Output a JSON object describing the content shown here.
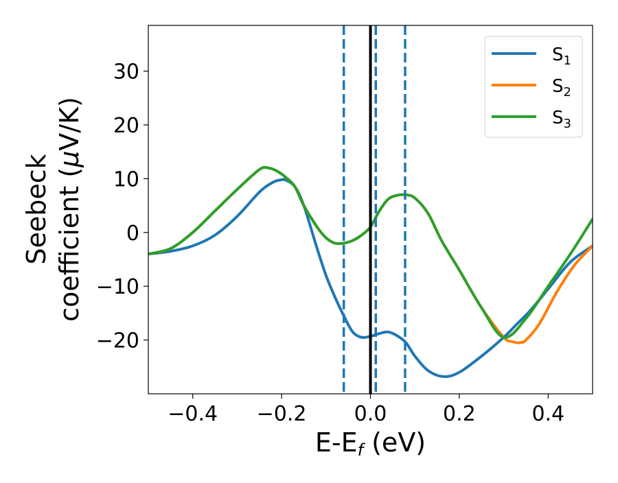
{
  "chart_data": {
    "type": "line",
    "title": "",
    "xlabel": "E-E",
    "xlabel_sub": "f",
    "xlabel_unit": " (eV)",
    "ylabel_line1": "Seebeck",
    "ylabel_line2": "coefficient  (",
    "ylabel_mu": "μ",
    "ylabel_line2_end": "V/K)",
    "xlim": [
      -0.5,
      0.5
    ],
    "ylim": [
      -30,
      38.5
    ],
    "xticks": [
      -0.4,
      -0.2,
      0.0,
      0.2,
      0.4
    ],
    "xtick_labels": [
      "−0.4",
      "−0.2",
      "0.0",
      "0.2",
      "0.4"
    ],
    "yticks": [
      -20,
      -10,
      0,
      10,
      20,
      30
    ],
    "ytick_labels": [
      "−20",
      "−10",
      "0",
      "10",
      "20",
      "30"
    ],
    "grid": false,
    "legend_position": "top-right",
    "series": [
      {
        "name": "S",
        "name_sub": "1",
        "color": "#1f77b4",
        "x": [
          -0.5,
          -0.45,
          -0.4,
          -0.35,
          -0.3,
          -0.25,
          -0.22,
          -0.2,
          -0.19,
          -0.17,
          -0.15,
          -0.12,
          -0.1,
          -0.08,
          -0.06,
          -0.04,
          -0.02,
          0.0,
          0.02,
          0.04,
          0.06,
          0.08,
          0.1,
          0.13,
          0.165,
          0.2,
          0.25,
          0.3,
          0.33,
          0.36,
          0.4,
          0.45,
          0.5
        ],
        "y": [
          -4,
          -3.5,
          -2.5,
          -0.5,
          3,
          7.5,
          9.3,
          9.8,
          9.7,
          8.5,
          5,
          -3,
          -8,
          -12,
          -15.5,
          -18.5,
          -19.5,
          -19.3,
          -18.8,
          -18.5,
          -19.2,
          -20.5,
          -23,
          -25.7,
          -26.8,
          -26,
          -23,
          -19.5,
          -17,
          -14.5,
          -10.5,
          -5.5,
          -2.5
        ]
      },
      {
        "name": "S",
        "name_sub": "2",
        "color": "#ff7f0e",
        "x": [
          -0.5,
          -0.45,
          -0.4,
          -0.35,
          -0.3,
          -0.25,
          -0.23,
          -0.21,
          -0.19,
          -0.17,
          -0.15,
          -0.12,
          -0.1,
          -0.08,
          -0.06,
          -0.04,
          -0.02,
          0.0,
          0.02,
          0.04,
          0.06,
          0.08,
          0.1,
          0.13,
          0.16,
          0.2,
          0.25,
          0.3,
          0.32,
          0.335,
          0.35,
          0.38,
          0.42,
          0.46,
          0.5
        ],
        "y": [
          -4,
          -3,
          0,
          4,
          8,
          11.7,
          12,
          11.4,
          10.2,
          8.5,
          5,
          1,
          -1,
          -2,
          -2,
          -1.5,
          -0.5,
          1,
          4,
          6.2,
          6.9,
          7,
          6.4,
          3.5,
          -1.5,
          -7,
          -14,
          -19.5,
          -20.3,
          -20.5,
          -20,
          -17,
          -11,
          -6,
          -2.5
        ]
      },
      {
        "name": "S",
        "name_sub": "3",
        "color": "#2ca02c",
        "x": [
          -0.5,
          -0.45,
          -0.4,
          -0.35,
          -0.3,
          -0.25,
          -0.23,
          -0.21,
          -0.19,
          -0.17,
          -0.15,
          -0.12,
          -0.1,
          -0.08,
          -0.06,
          -0.04,
          -0.02,
          0.0,
          0.02,
          0.04,
          0.06,
          0.08,
          0.1,
          0.13,
          0.16,
          0.2,
          0.25,
          0.3,
          0.35,
          0.4,
          0.45,
          0.5
        ],
        "y": [
          -4,
          -3,
          0,
          4,
          8,
          11.7,
          12,
          11.4,
          10.2,
          8.5,
          5,
          1,
          -1,
          -2,
          -2,
          -1.5,
          -0.5,
          1,
          4,
          6.2,
          6.9,
          7,
          6.4,
          3.5,
          -1.5,
          -7,
          -14,
          -19.5,
          -16,
          -10,
          -4,
          2.5
        ]
      }
    ],
    "vlines": [
      {
        "x": -0.06,
        "style": "dashed",
        "color": "#1f77b4"
      },
      {
        "x": 0.012,
        "style": "dashed",
        "color": "#1f77b4"
      },
      {
        "x": 0.078,
        "style": "dashed",
        "color": "#1f77b4"
      },
      {
        "x": 0.0,
        "style": "solid",
        "color": "#000000"
      }
    ]
  }
}
